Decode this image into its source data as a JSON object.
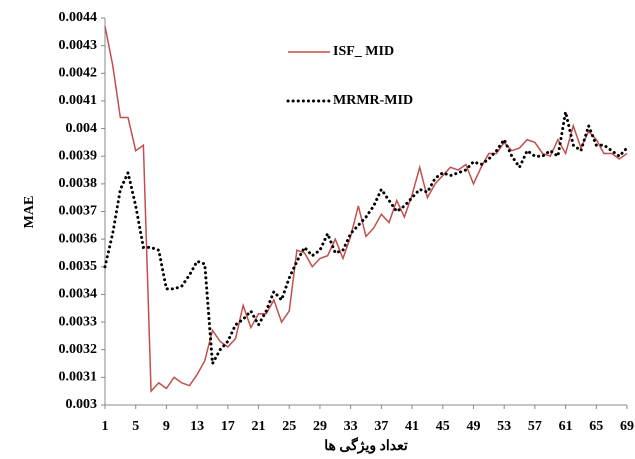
{
  "chart_data": {
    "type": "line",
    "x_label": "تعداد ویژگی ها",
    "y_label": "MAE",
    "x": [
      1,
      2,
      3,
      4,
      5,
      6,
      7,
      8,
      9,
      10,
      11,
      12,
      13,
      14,
      15,
      16,
      17,
      18,
      19,
      20,
      21,
      22,
      23,
      24,
      25,
      26,
      27,
      28,
      29,
      30,
      31,
      32,
      33,
      34,
      35,
      36,
      37,
      38,
      39,
      40,
      41,
      42,
      43,
      44,
      45,
      46,
      47,
      48,
      49,
      50,
      51,
      52,
      53,
      54,
      55,
      56,
      57,
      58,
      59,
      60,
      61,
      62,
      63,
      64,
      65,
      66,
      67,
      68,
      69
    ],
    "series": [
      {
        "name": "ISF_ MID",
        "color": "#c0504d",
        "style": "solid",
        "values": [
          0.00437,
          0.00423,
          0.00404,
          0.00404,
          0.00392,
          0.00394,
          0.00305,
          0.00308,
          0.00306,
          0.0031,
          0.00308,
          0.00307,
          0.00311,
          0.00316,
          0.00327,
          0.00323,
          0.00321,
          0.00324,
          0.00336,
          0.00328,
          0.00333,
          0.00333,
          0.00338,
          0.0033,
          0.00334,
          0.00356,
          0.00355,
          0.0035,
          0.00353,
          0.00354,
          0.0036,
          0.00353,
          0.00361,
          0.00372,
          0.00361,
          0.00364,
          0.00369,
          0.00366,
          0.00374,
          0.00368,
          0.00376,
          0.00386,
          0.00375,
          0.0038,
          0.00383,
          0.00386,
          0.00385,
          0.00387,
          0.0038,
          0.00386,
          0.00391,
          0.00391,
          0.00395,
          0.00392,
          0.00393,
          0.00396,
          0.00395,
          0.00391,
          0.0039,
          0.00396,
          0.00391,
          0.00401,
          0.00393,
          0.00399,
          0.00396,
          0.00391,
          0.00391,
          0.00389,
          0.00391
        ]
      },
      {
        "name": "MRMR-MID",
        "color": "#000000",
        "style": "dotted",
        "values": [
          0.0035,
          0.00362,
          0.00378,
          0.00384,
          0.00372,
          0.00357,
          0.00357,
          0.00356,
          0.00342,
          0.00342,
          0.00343,
          0.00347,
          0.00352,
          0.00351,
          0.00315,
          0.0032,
          0.00323,
          0.00329,
          0.00331,
          0.00334,
          0.00329,
          0.00334,
          0.00341,
          0.00338,
          0.00346,
          0.00352,
          0.00357,
          0.00354,
          0.00356,
          0.00362,
          0.00355,
          0.00356,
          0.00362,
          0.00365,
          0.00368,
          0.00372,
          0.00378,
          0.00374,
          0.0037,
          0.00372,
          0.00375,
          0.00378,
          0.00377,
          0.00382,
          0.00384,
          0.00383,
          0.00384,
          0.00385,
          0.00388,
          0.00387,
          0.00389,
          0.00392,
          0.00396,
          0.0039,
          0.00386,
          0.00392,
          0.0039,
          0.0039,
          0.00392,
          0.0039,
          0.00406,
          0.00394,
          0.00392,
          0.00401,
          0.00394,
          0.00394,
          0.00392,
          0.0039,
          0.00393
        ]
      }
    ],
    "xlim": [
      1,
      69
    ],
    "xticks": [
      1,
      5,
      9,
      13,
      17,
      21,
      25,
      29,
      33,
      37,
      41,
      45,
      49,
      53,
      57,
      61,
      65,
      69
    ],
    "ylim": [
      0.003,
      0.0044
    ],
    "yticks": [
      0.003,
      0.0031,
      0.0032,
      0.0033,
      0.0034,
      0.0035,
      0.0036,
      0.0037,
      0.0038,
      0.0039,
      0.004,
      0.0041,
      0.0042,
      0.0043,
      0.0044
    ],
    "grid": false
  }
}
